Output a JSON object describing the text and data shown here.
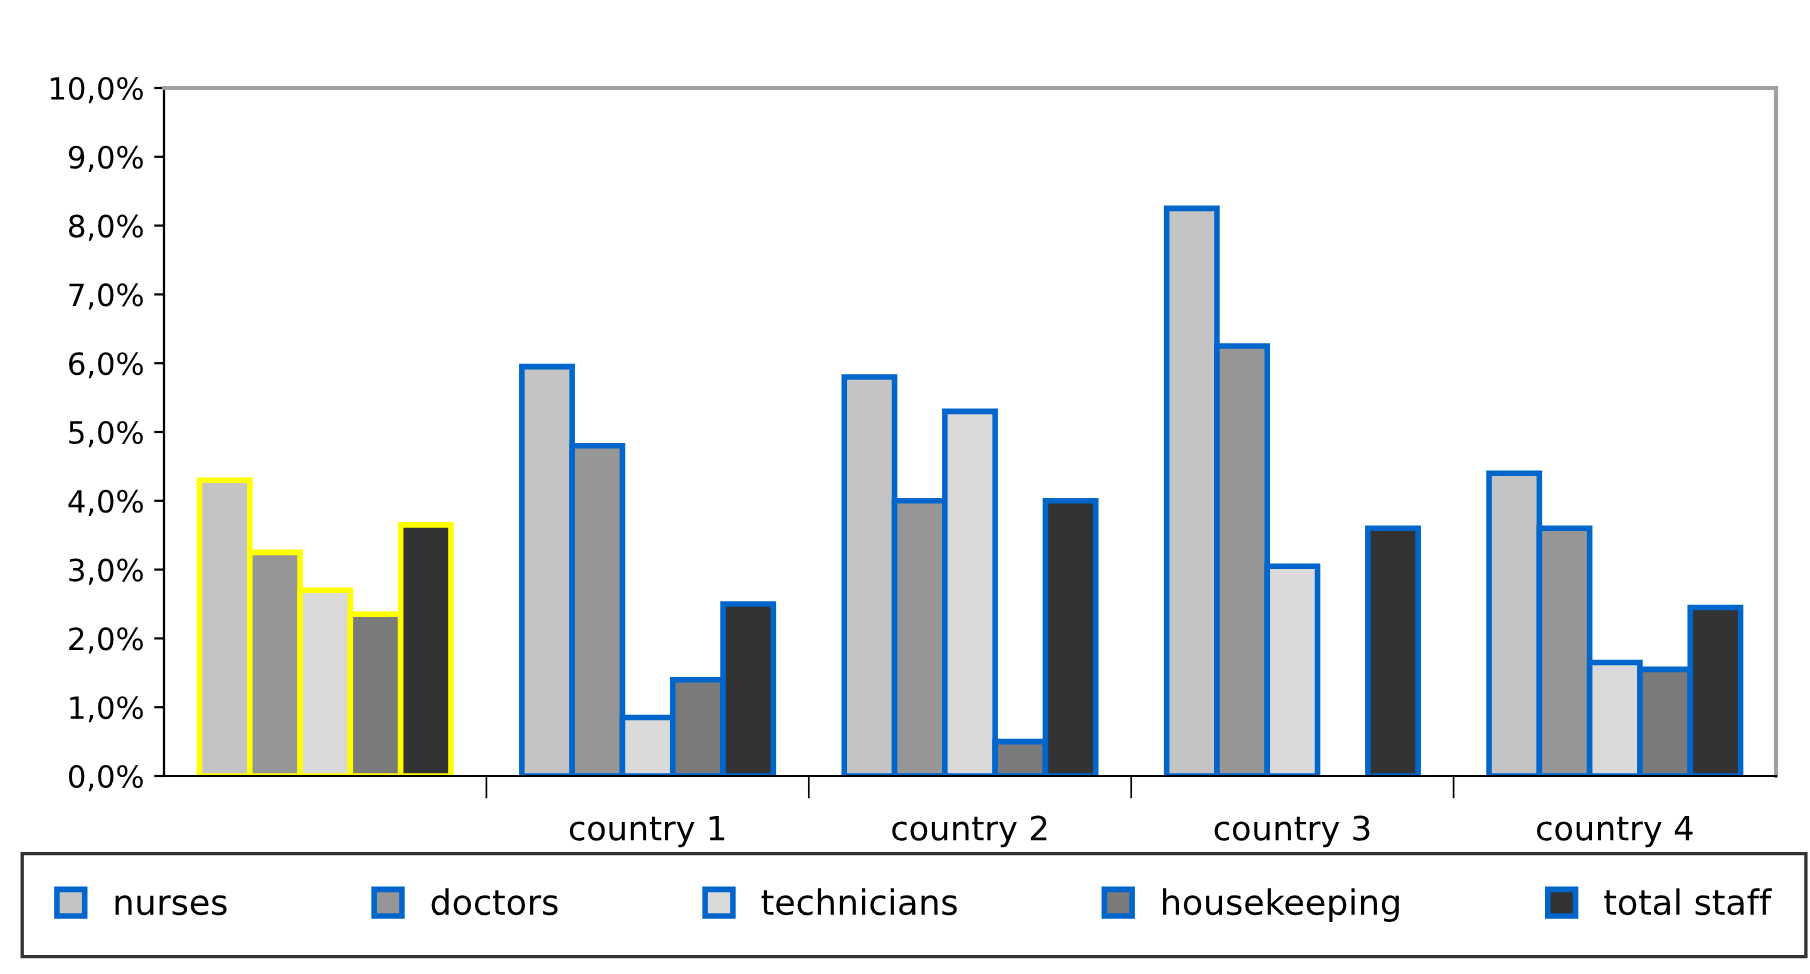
{
  "chart_data": {
    "type": "bar",
    "categories": [
      null,
      "country 1",
      "country 2",
      "country 3",
      "country 4"
    ],
    "series": [
      {
        "name": "nurses",
        "color": "#c4c4c4",
        "values": [
          4.3,
          5.95,
          5.8,
          8.25,
          4.4
        ]
      },
      {
        "name": "doctors",
        "color": "#969696",
        "values": [
          3.25,
          4.8,
          4.0,
          6.25,
          3.6
        ]
      },
      {
        "name": "technicians",
        "color": "#dadada",
        "values": [
          2.7,
          0.85,
          5.3,
          3.05,
          1.65
        ]
      },
      {
        "name": "housekeeping",
        "color": "#7a7a7a",
        "values": [
          2.35,
          1.4,
          0.5,
          null,
          1.55
        ]
      },
      {
        "name": "total staff",
        "color": "#333333",
        "values": [
          3.65,
          2.5,
          4.0,
          3.6,
          2.45
        ]
      }
    ],
    "ylim": [
      0,
      10
    ],
    "yticks": [
      {
        "value": 0,
        "label": "0,0%"
      },
      {
        "value": 1,
        "label": "1,0%"
      },
      {
        "value": 2,
        "label": "2,0%"
      },
      {
        "value": 3,
        "label": "3,0%"
      },
      {
        "value": 4,
        "label": "4,0%"
      },
      {
        "value": 5,
        "label": "5,0%"
      },
      {
        "value": 6,
        "label": "6,0%"
      },
      {
        "value": 7,
        "label": "7,0%"
      },
      {
        "value": 8,
        "label": "8,0%"
      },
      {
        "value": 9,
        "label": "9,0%"
      },
      {
        "value": 10,
        "label": "10,0%"
      }
    ],
    "grid": false,
    "legend": "bottom"
  }
}
